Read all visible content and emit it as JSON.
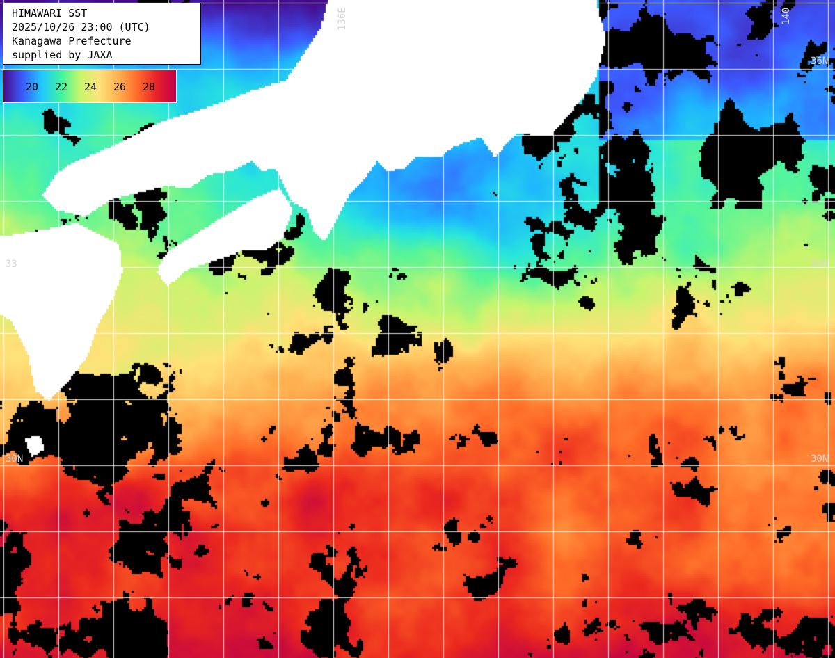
{
  "header": {
    "title": "HIMAWARI SST",
    "datetime": "2025/10/26 23:00 (UTC)",
    "region": "Kanagawa Prefecture",
    "credit": "supplied by JAXA"
  },
  "legend": {
    "labels": [
      "20",
      "22",
      "24",
      "26",
      "28"
    ],
    "colors": [
      "#4a0a8a",
      "#3a5cff",
      "#21c8ff",
      "#3cf5a0",
      "#c8f56a",
      "#ffe27a",
      "#ffb050",
      "#ff6a2a",
      "#e8202a",
      "#c0004a"
    ]
  },
  "grid_labels": {
    "lon_136": "136E",
    "lon_140": "140",
    "lat_36": "36N",
    "lat_33_left": "33",
    "lat_33_right": "33N",
    "lat_30_left": "30N",
    "lat_30_right": "30N"
  },
  "colors": {
    "land": "#ffffff",
    "cloud": "#000000",
    "grid": "#ffffff"
  }
}
